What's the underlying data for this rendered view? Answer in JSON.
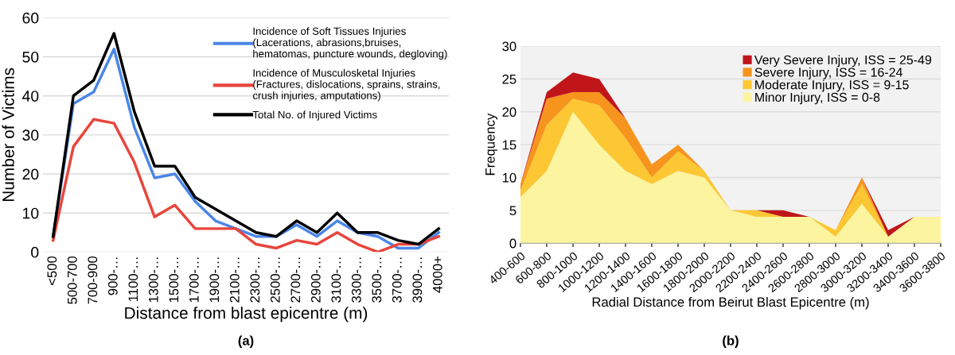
{
  "chart_data": [
    {
      "type": "line",
      "xlabel": "Distance from blast epicentre (m)",
      "ylabel": "Number of Victims",
      "categories": [
        "<500",
        "500-700",
        "700-900",
        "900-…",
        "1100-…",
        "1300-…",
        "1500-…",
        "1700-…",
        "1900-…",
        "2100-…",
        "2300-…",
        "2500-…",
        "2700-…",
        "2900-…",
        "3100-…",
        "3300-…",
        "3500-…",
        "3700-…",
        "3900-…",
        "4000+"
      ],
      "series": [
        {
          "name": "Incidence of Soft Tissues Injuries\n(Lacerations, abrasions,bruises,\nhematomas, puncture wounds, degloving)",
          "color": "#4a86e8",
          "values": [
            4,
            38,
            41,
            52,
            32,
            19,
            20,
            13,
            8,
            6,
            4,
            4,
            7,
            4,
            8,
            5,
            4,
            1,
            1,
            5
          ]
        },
        {
          "name": "Incidence of Musculosketal Injuries\n(Fractures, dislocations, sprains, strains,\ncrush injuries, amputations)",
          "color": "#e8453c",
          "values": [
            3,
            27,
            34,
            33,
            23,
            9,
            12,
            6,
            6,
            6,
            2,
            1,
            3,
            2,
            5,
            2,
            0,
            2,
            2,
            4
          ]
        },
        {
          "name": "Total No. of Injured Victims",
          "color": "#000000",
          "values": [
            4,
            40,
            44,
            56,
            36,
            22,
            22,
            14,
            11,
            8,
            5,
            4,
            8,
            5,
            10,
            5,
            5,
            3,
            2,
            6
          ]
        }
      ],
      "ylim": [
        0,
        60
      ],
      "yticks": [
        0,
        10,
        20,
        30,
        40,
        50,
        60
      ],
      "grid": "y",
      "legend": "top right",
      "annotations": [
        "(a)"
      ]
    },
    {
      "type": "area",
      "stacked": true,
      "xlabel": "Radial Distance from Beirut Blast Epicentre (m)",
      "ylabel": "Frequency",
      "categories": [
        "400-600",
        "600-800",
        "800-1000",
        "1000-1200",
        "1200-1400",
        "1400-1600",
        "1600-1800",
        "1800-2000",
        "2000-2200",
        "2200-2400",
        "2400-2600",
        "2600-2800",
        "2800-3000",
        "3000-3200",
        "3200-3400",
        "3400-3600",
        "3600-3800"
      ],
      "series": [
        {
          "name": "Minor Injury, ISS = 0-8",
          "color": "#fdf4a0",
          "values": [
            7,
            11,
            20,
            15,
            11,
            9,
            11,
            10,
            5,
            4,
            4,
            4,
            1,
            6,
            1,
            4,
            4
          ]
        },
        {
          "name": "Moderate Injury, ISS = 9-15",
          "color": "#fcc733",
          "values": [
            1,
            7,
            2,
            6,
            5,
            1,
            3,
            1,
            0,
            1,
            0,
            0,
            1,
            3,
            0,
            0,
            0
          ]
        },
        {
          "name": "Severe Injury, ISS = 16-24",
          "color": "#f7941d",
          "values": [
            1,
            4,
            1,
            2,
            3,
            2,
            1,
            0,
            0,
            0,
            0,
            0,
            0,
            1,
            0,
            0,
            0
          ]
        },
        {
          "name": "Very Severe Injury, ISS = 25-49",
          "color": "#c0161a",
          "values": [
            0,
            1,
            3,
            2,
            0,
            0,
            0,
            0,
            0,
            0,
            1,
            0,
            0,
            0,
            1,
            0,
            0
          ]
        }
      ],
      "ylim": [
        0,
        30
      ],
      "yticks": [
        0,
        5,
        10,
        15,
        20,
        25,
        30
      ],
      "grid": "y",
      "legend": "top right",
      "annotations": [
        "(b)"
      ]
    }
  ]
}
